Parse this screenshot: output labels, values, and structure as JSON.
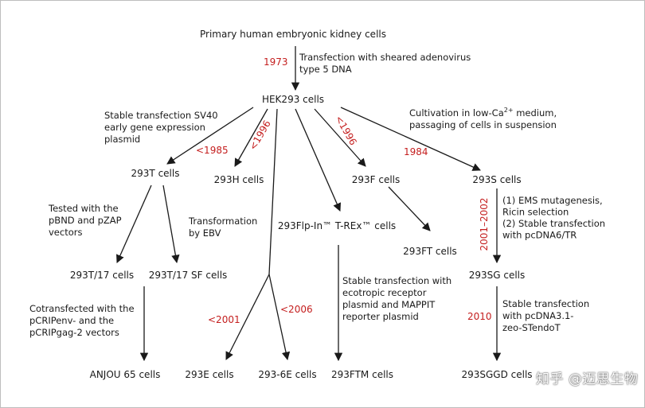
{
  "colors": {
    "line": "#1a1a1a",
    "year": "#c41e1e",
    "text": "#1a1a1a",
    "frame": "#bdbdbd"
  },
  "nodes": {
    "primary": "Primary human embryonic kidney cells",
    "hek293": "HEK293 cells",
    "n293t": "293T cells",
    "n293h": "293H cells",
    "n293f": "293F cells",
    "n293s": "293S cells",
    "n293flp": "293Flp-In™ T-REx™ cells",
    "n293ft": "293FT cells",
    "n293t17": "293T/17 cells",
    "n293t17sf": "293T/17 SF cells",
    "n293sg": "293SG cells",
    "anjou": "ANJOU 65 cells",
    "n293e": "293E cells",
    "n2936e": "293-6E cells",
    "n293ftm": "293FTM cells",
    "n293sgd": "293SGGD cells"
  },
  "notes": {
    "adenovirus": [
      "Transfection with sheared adenovirus",
      "type 5 DNA"
    ],
    "sv40": [
      "Stable transfection SV40",
      "early gene expression",
      "plasmid"
    ],
    "lowca_a": "Cultivation in low-Ca",
    "lowca_sup": "2+",
    "lowca_b": " medium,",
    "lowca_c": "passaging of cells in suspension",
    "pbnd": [
      "Tested with the",
      "pBND and pZAP",
      "vectors"
    ],
    "ebv": [
      "Transformation",
      "by EBV"
    ],
    "ems": [
      "(1) EMS mutagenesis,",
      "Ricin selection",
      "(2) Stable transfection",
      "with pcDNA6/TR"
    ],
    "cotransfected": [
      "Cotransfected with the",
      "pCRIPenv- and the",
      "pCRIPgag-2 vectors"
    ],
    "mappit": [
      "Stable transfection with",
      "ecotropic receptor",
      "plasmid and MAPPIT",
      "reporter plasmid"
    ],
    "stendo": [
      "Stable transfection",
      "with pcDNA3.1-",
      "zeo-STendoT"
    ]
  },
  "years": {
    "y1973": "1973",
    "y1985": "<1985",
    "y1996a": "<1996",
    "y1996b": "<1996",
    "y1984": "1984",
    "y2001": "<2001",
    "y2006": "<2006",
    "y2001_2002": "2001–2002",
    "y2010": "2010"
  },
  "watermark": "知乎 @迈思生物"
}
